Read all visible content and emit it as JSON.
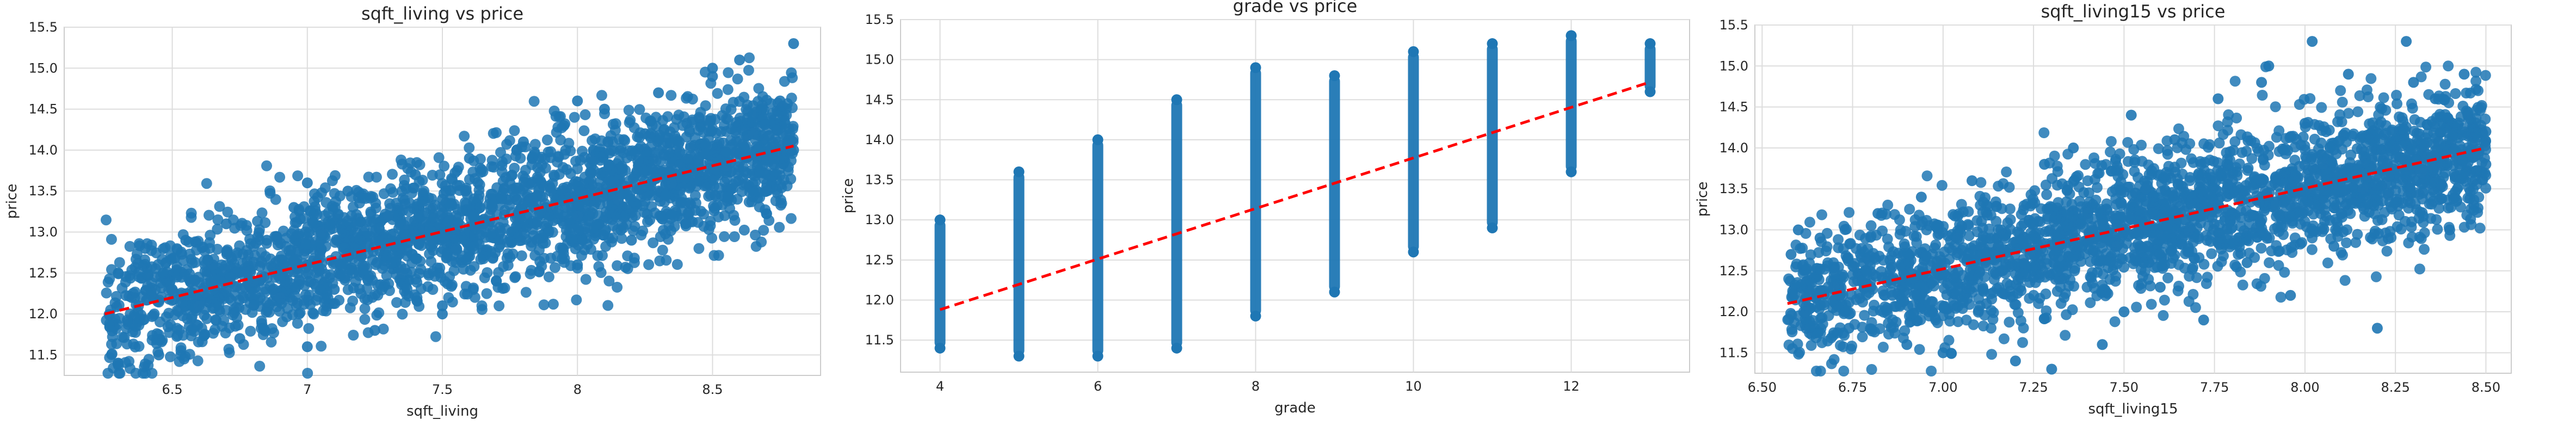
{
  "charts": [
    {
      "title": "sqft_living vs price",
      "xlabel": "sqft_living",
      "ylabel": "price"
    },
    {
      "title": "grade vs price",
      "xlabel": "grade",
      "ylabel": "price"
    },
    {
      "title": "sqft_living15 vs price",
      "xlabel": "sqft_living15",
      "ylabel": "price"
    }
  ],
  "chart_data": [
    {
      "type": "scatter",
      "title": "sqft_living vs price",
      "xlabel": "sqft_living",
      "ylabel": "price",
      "xlim": [
        6.1,
        8.9
      ],
      "ylim": [
        11.25,
        15.5
      ],
      "xticks": [
        6.5,
        7.0,
        7.5,
        8.0,
        8.5
      ],
      "yticks": [
        11.5,
        12.0,
        12.5,
        13.0,
        13.5,
        14.0,
        14.5,
        15.0,
        15.5
      ],
      "grid": true,
      "point_color": "#1f77b4",
      "trend_color": "#ff0000",
      "trendline": {
        "style": "dashed",
        "x": [
          6.25,
          8.8
        ],
        "y": [
          12.0,
          14.05
        ]
      },
      "points": [
        [
          6.3,
          12.5
        ],
        [
          6.35,
          12.2
        ],
        [
          6.4,
          12.8
        ],
        [
          6.45,
          11.5
        ],
        [
          6.5,
          12.3
        ],
        [
          6.55,
          12.9
        ],
        [
          6.6,
          12.1
        ],
        [
          6.65,
          12.6
        ],
        [
          6.7,
          13.1
        ],
        [
          6.75,
          11.7
        ],
        [
          6.8,
          12.4
        ],
        [
          6.85,
          12.9
        ],
        [
          6.9,
          12.2
        ],
        [
          6.95,
          13.3
        ],
        [
          7.0,
          12.6
        ],
        [
          7.0,
          11.6
        ],
        [
          7.05,
          13.0
        ],
        [
          7.1,
          12.3
        ],
        [
          7.15,
          13.5
        ],
        [
          7.2,
          12.7
        ],
        [
          7.25,
          11.8
        ],
        [
          7.3,
          13.2
        ],
        [
          7.35,
          12.5
        ],
        [
          7.4,
          13.7
        ],
        [
          7.45,
          12.9
        ],
        [
          7.5,
          12.1
        ],
        [
          7.5,
          13.4
        ],
        [
          7.55,
          12.8
        ],
        [
          7.6,
          13.9
        ],
        [
          7.65,
          13.1
        ],
        [
          7.7,
          12.4
        ],
        [
          7.75,
          13.6
        ],
        [
          7.8,
          14.1
        ],
        [
          7.85,
          12.9
        ],
        [
          7.9,
          13.5
        ],
        [
          7.95,
          14.3
        ],
        [
          8.0,
          13.2
        ],
        [
          8.0,
          12.6
        ],
        [
          8.05,
          13.9
        ],
        [
          8.1,
          14.5
        ],
        [
          8.15,
          13.4
        ],
        [
          8.2,
          12.9
        ],
        [
          8.25,
          14.2
        ],
        [
          8.3,
          14.7
        ],
        [
          8.35,
          13.6
        ],
        [
          8.4,
          13.1
        ],
        [
          8.45,
          14.4
        ],
        [
          8.5,
          14.9
        ],
        [
          8.55,
          13.8
        ],
        [
          8.6,
          15.1
        ],
        [
          8.65,
          14.2
        ],
        [
          8.7,
          13.5
        ],
        [
          8.75,
          14.6
        ],
        [
          8.8,
          15.3
        ],
        [
          8.8,
          14.0
        ],
        [
          6.3,
          11.4
        ],
        [
          8.5,
          15.0
        ],
        [
          7.0,
          13.6
        ],
        [
          7.5,
          12.0
        ],
        [
          8.0,
          14.6
        ]
      ]
    },
    {
      "type": "scatter",
      "title": "grade vs price",
      "xlabel": "grade",
      "ylabel": "price",
      "xlim": [
        3.5,
        13.5
      ],
      "ylim": [
        11.1,
        15.5
      ],
      "xticks": [
        4,
        6,
        8,
        10,
        12
      ],
      "yticks": [
        11.5,
        12.0,
        12.5,
        13.0,
        13.5,
        14.0,
        14.5,
        15.0,
        15.5
      ],
      "grid": true,
      "point_color": "#1f77b4",
      "trend_color": "#ff0000",
      "trendline": {
        "style": "dashed",
        "x": [
          4,
          13
        ],
        "y": [
          11.88,
          14.72
        ]
      },
      "columns": [
        {
          "x": 4,
          "ymin": 11.4,
          "ymax": 13.0
        },
        {
          "x": 5,
          "ymin": 11.3,
          "ymax": 13.6
        },
        {
          "x": 6,
          "ymin": 11.3,
          "ymax": 14.0
        },
        {
          "x": 7,
          "ymin": 11.4,
          "ymax": 14.5
        },
        {
          "x": 8,
          "ymin": 11.8,
          "ymax": 14.9
        },
        {
          "x": 9,
          "ymin": 12.1,
          "ymax": 14.8
        },
        {
          "x": 10,
          "ymin": 12.6,
          "ymax": 15.1
        },
        {
          "x": 11,
          "ymin": 12.9,
          "ymax": 15.2
        },
        {
          "x": 12,
          "ymin": 13.6,
          "ymax": 15.3
        },
        {
          "x": 13,
          "ymin": 14.6,
          "ymax": 15.2
        }
      ]
    },
    {
      "type": "scatter",
      "title": "sqft_living15 vs price",
      "xlabel": "sqft_living15",
      "ylabel": "price",
      "xlim": [
        6.48,
        8.57
      ],
      "ylim": [
        11.25,
        15.5
      ],
      "xticks": [
        6.5,
        6.75,
        7.0,
        7.25,
        7.5,
        7.75,
        8.0,
        8.25,
        8.5
      ],
      "xtick_labels": [
        "6.50",
        "6.75",
        "7.00",
        "7.25",
        "7.50",
        "7.75",
        "8.00",
        "8.25",
        "8.50"
      ],
      "yticks": [
        11.5,
        12.0,
        12.5,
        13.0,
        13.5,
        14.0,
        14.5,
        15.0,
        15.5
      ],
      "grid": true,
      "point_color": "#1f77b4",
      "trend_color": "#ff0000",
      "trendline": {
        "style": "dashed",
        "x": [
          6.57,
          8.5
        ],
        "y": [
          12.1,
          14.0
        ]
      },
      "points": [
        [
          6.58,
          12.7
        ],
        [
          6.62,
          12.0
        ],
        [
          6.66,
          12.9
        ],
        [
          6.7,
          12.3
        ],
        [
          6.74,
          11.8
        ],
        [
          6.78,
          12.6
        ],
        [
          6.82,
          13.2
        ],
        [
          6.86,
          12.2
        ],
        [
          6.9,
          11.6
        ],
        [
          6.94,
          13.4
        ],
        [
          6.98,
          12.5
        ],
        [
          7.0,
          11.5
        ],
        [
          7.04,
          12.9
        ],
        [
          7.08,
          13.6
        ],
        [
          7.12,
          12.1
        ],
        [
          7.16,
          13.0
        ],
        [
          7.2,
          11.4
        ],
        [
          7.24,
          12.7
        ],
        [
          7.28,
          13.8
        ],
        [
          7.32,
          12.4
        ],
        [
          7.36,
          14.0
        ],
        [
          7.4,
          13.2
        ],
        [
          7.44,
          11.6
        ],
        [
          7.48,
          12.8
        ],
        [
          7.52,
          14.4
        ],
        [
          7.56,
          13.5
        ],
        [
          7.6,
          12.3
        ],
        [
          7.64,
          14.1
        ],
        [
          7.68,
          13.0
        ],
        [
          7.72,
          11.9
        ],
        [
          7.76,
          14.6
        ],
        [
          7.8,
          13.6
        ],
        [
          7.84,
          12.6
        ],
        [
          7.88,
          14.8
        ],
        [
          7.92,
          13.3
        ],
        [
          7.96,
          12.2
        ],
        [
          8.0,
          14.3
        ],
        [
          8.02,
          15.3
        ],
        [
          8.05,
          13.8
        ],
        [
          8.08,
          12.8
        ],
        [
          8.12,
          14.9
        ],
        [
          8.16,
          13.5
        ],
        [
          8.2,
          11.8
        ],
        [
          8.24,
          14.2
        ],
        [
          8.28,
          15.3
        ],
        [
          8.32,
          13.7
        ],
        [
          8.36,
          14.6
        ],
        [
          8.4,
          13.0
        ],
        [
          8.44,
          14.9
        ],
        [
          8.47,
          13.9
        ],
        [
          8.5,
          14.2
        ],
        [
          8.5,
          13.8
        ],
        [
          6.6,
          13.0
        ],
        [
          7.3,
          11.3
        ],
        [
          7.9,
          15.0
        ],
        [
          8.3,
          14.8
        ],
        [
          6.7,
          12.5
        ],
        [
          7.5,
          12.0
        ],
        [
          8.1,
          13.2
        ],
        [
          8.45,
          14.4
        ]
      ]
    }
  ]
}
